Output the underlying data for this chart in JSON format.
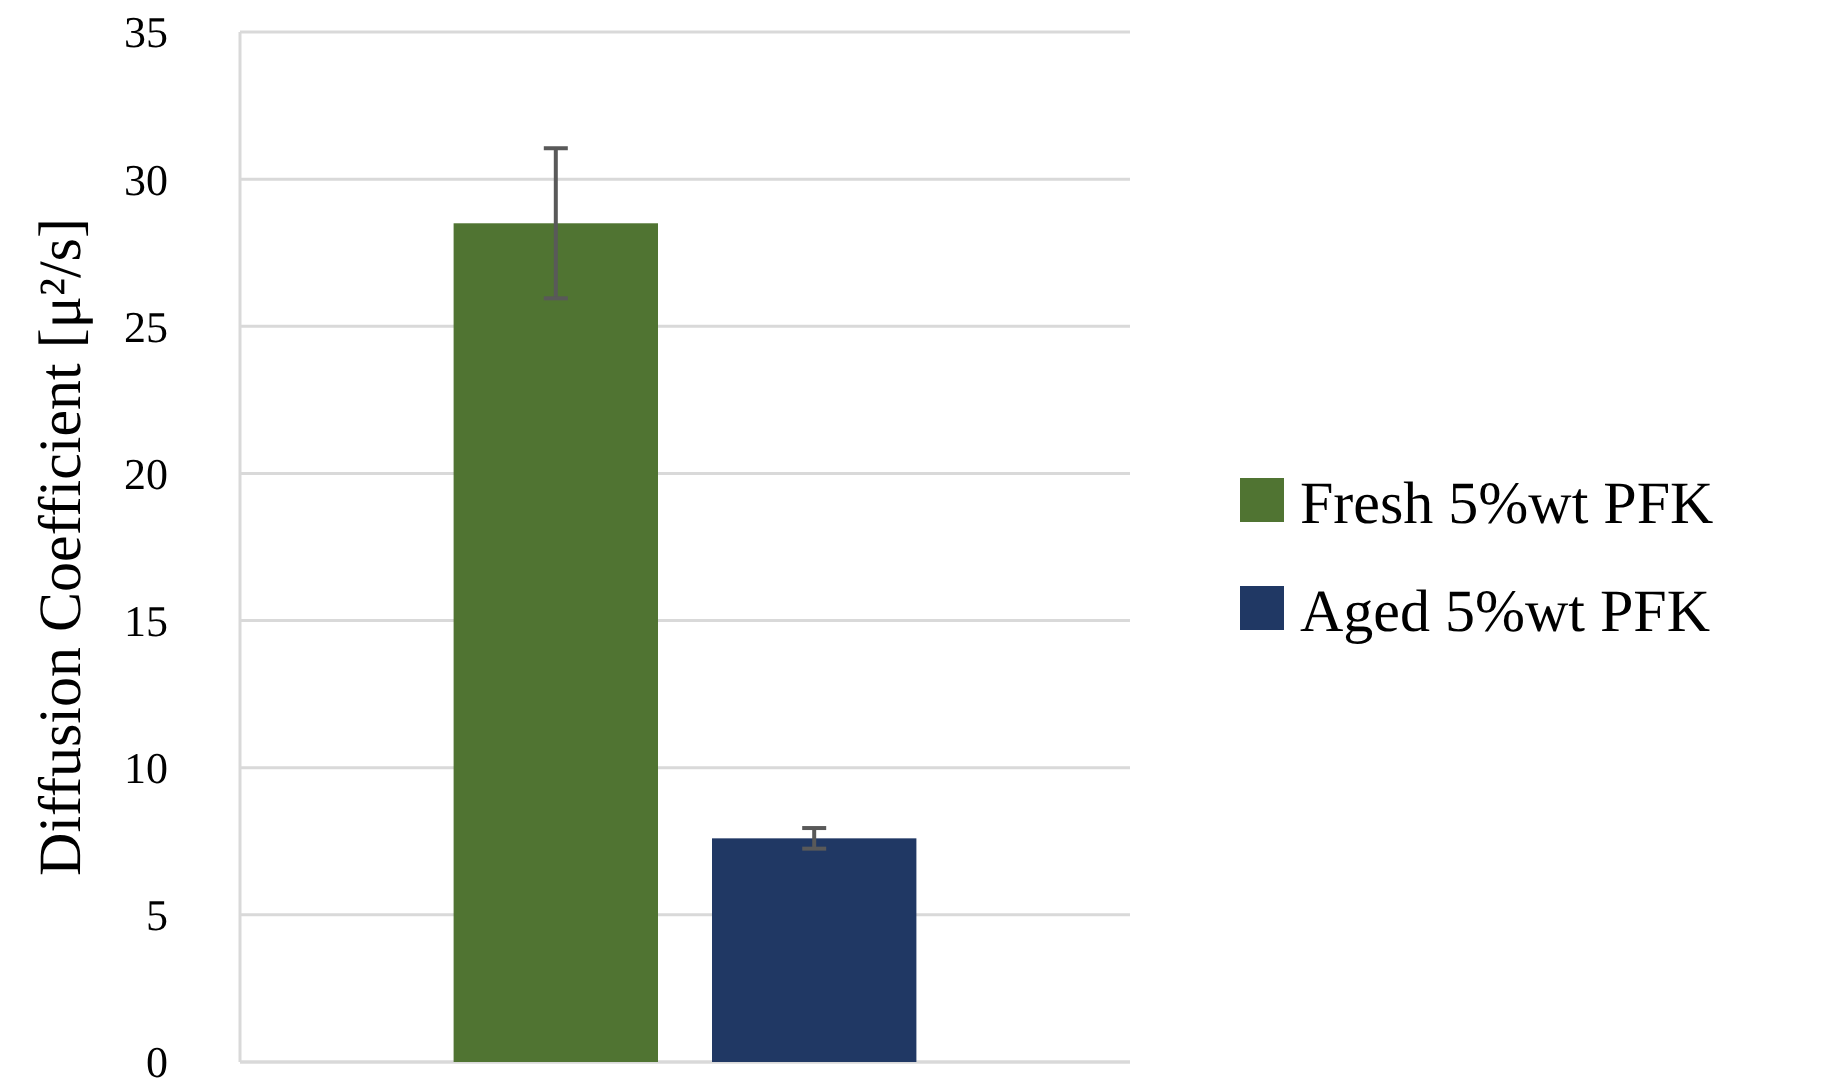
{
  "chart_data": {
    "type": "bar",
    "ylabel": "Diffusion Coefficient [μ²/s]",
    "categories": [
      null
    ],
    "series": [
      {
        "name": "Fresh 5%wt PFK",
        "color": "#507432",
        "values": [
          28.5
        ],
        "errors": [
          2.55
        ]
      },
      {
        "name": "Aged 5%wt PFK",
        "color": "#203864",
        "values": [
          7.6
        ],
        "errors": [
          0.35
        ]
      }
    ],
    "ylim": [
      0,
      35
    ],
    "yticks": [
      0,
      5,
      10,
      15,
      20,
      25,
      30,
      35
    ],
    "grid": "y",
    "legend": "right"
  }
}
